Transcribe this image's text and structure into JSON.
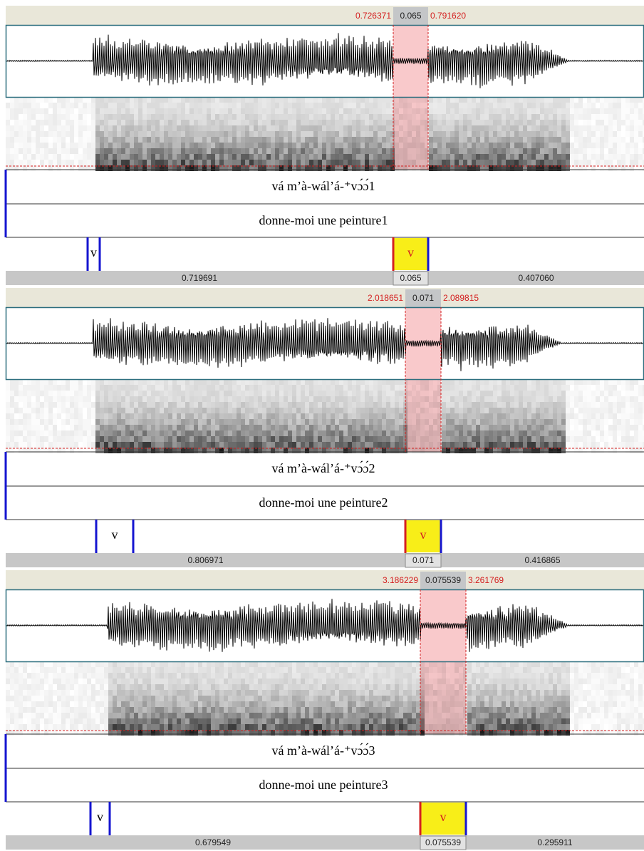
{
  "panels": [
    {
      "selection": {
        "start": "0.726371",
        "duration": "0.065",
        "end": "0.791620"
      },
      "tiers": [
        "vá m’à-wál’á-⁺vɔ́ɔ́1",
        "donne-moi une peinture1"
      ],
      "intervals": [
        "v",
        "v"
      ],
      "durations": [
        "0.719691",
        "0.065",
        "0.407060"
      ]
    },
    {
      "selection": {
        "start": "2.018651",
        "duration": "0.071",
        "end": "2.089815"
      },
      "tiers": [
        "vá m’à-wál’á-⁺vɔ́ɔ́2",
        "donne-moi une peinture2"
      ],
      "intervals": [
        "v",
        "v"
      ],
      "durations": [
        "0.806971",
        "0.071",
        "0.416865"
      ]
    },
    {
      "selection": {
        "start": "3.186229",
        "duration": "0.075539",
        "end": "3.261769"
      },
      "tiers": [
        "vá m’à-wál’á-⁺vɔ́ɔ́3",
        "donne-moi une peinture3"
      ],
      "intervals": [
        "v",
        "v"
      ],
      "durations": [
        "0.679549",
        "0.075539",
        "0.295911"
      ]
    }
  ]
}
